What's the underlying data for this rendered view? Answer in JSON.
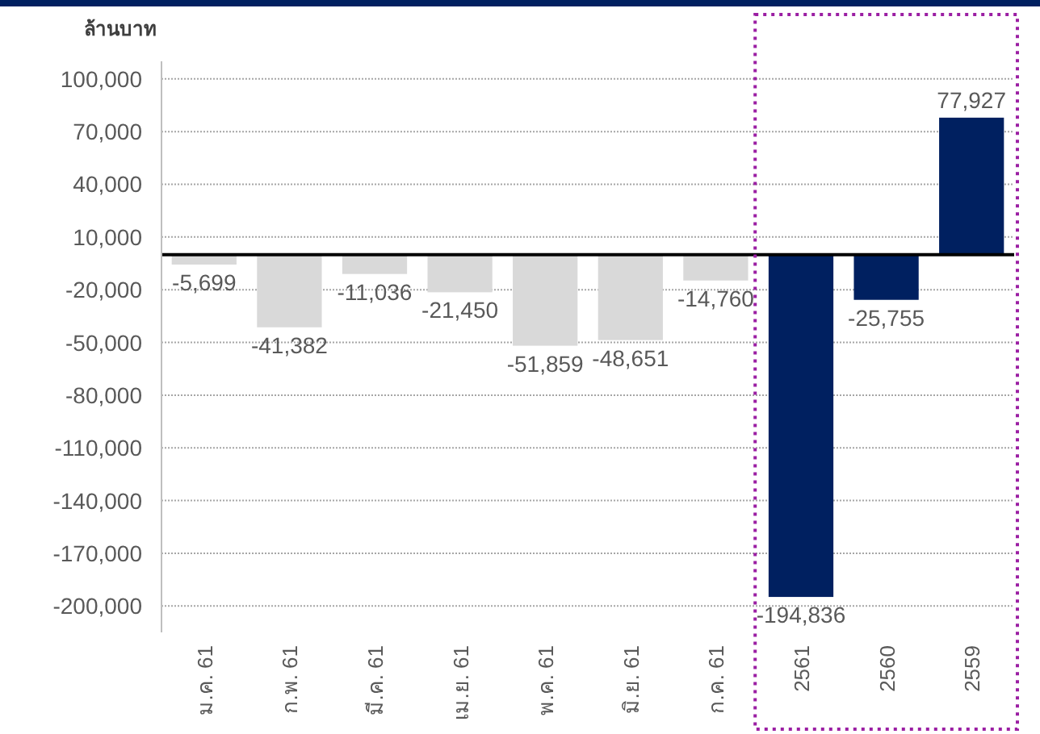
{
  "chart_data": {
    "type": "bar",
    "ylabel": "ล้านบาท",
    "categories": [
      "ม.ค. 61",
      "ก.พ. 61",
      "มี.ค. 61",
      "เม.ย. 61",
      "พ.ค. 61",
      "มิ.ย. 61",
      "ก.ค. 61",
      "2561",
      "2560",
      "2559"
    ],
    "values": [
      -5699,
      -41382,
      -11036,
      -21450,
      -51859,
      -48651,
      -14760,
      -194836,
      -25755,
      77927
    ],
    "colors": [
      "#d9d9d9",
      "#d9d9d9",
      "#d9d9d9",
      "#d9d9d9",
      "#d9d9d9",
      "#d9d9d9",
      "#d9d9d9",
      "#002060",
      "#002060",
      "#002060"
    ],
    "ylim": [
      -215000,
      110000
    ],
    "yticks": [
      {
        "value": 100000,
        "label": "100,000"
      },
      {
        "value": 70000,
        "label": "70,000"
      },
      {
        "value": 40000,
        "label": "40,000"
      },
      {
        "value": 10000,
        "label": "10,000"
      },
      {
        "value": -20000,
        "label": "-20,000"
      },
      {
        "value": -50000,
        "label": "-50,000"
      },
      {
        "value": -80000,
        "label": "-80,000"
      },
      {
        "value": -110000,
        "label": "-110,000"
      },
      {
        "value": -140000,
        "label": "-140,000"
      },
      {
        "value": -170000,
        "label": "-170,000"
      },
      {
        "value": -200000,
        "label": "-200,000"
      }
    ],
    "value_labels": [
      "-5,699",
      "-41,382",
      "-11,036",
      "-21,450",
      "-51,859",
      "-48,651",
      "-14,760",
      "-194,836",
      "-25,755",
      "77,927"
    ],
    "grid": "y"
  }
}
